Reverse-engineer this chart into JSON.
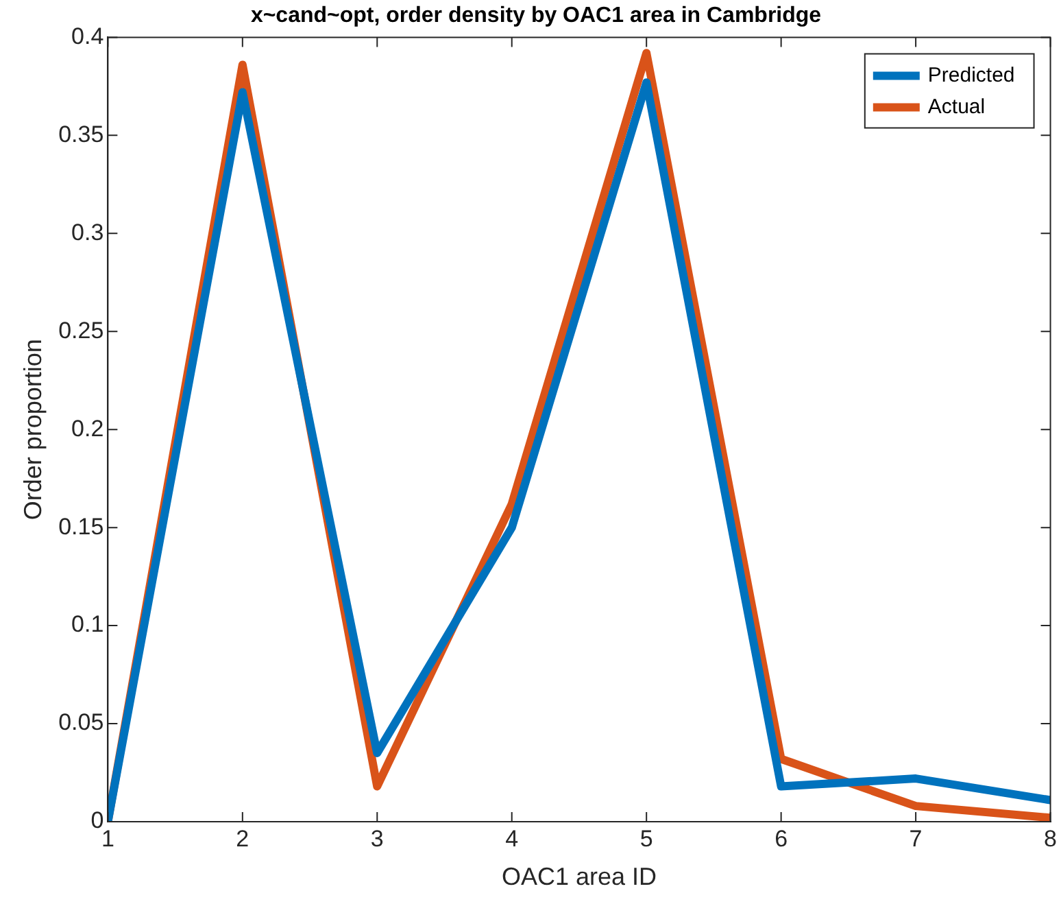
{
  "chart_data": {
    "type": "line",
    "title": "x~cand~opt, order density by OAC1 area in Cambridge",
    "xlabel": "OAC1 area ID",
    "ylabel": "Order proportion",
    "x": [
      1,
      2,
      3,
      4,
      5,
      6,
      7,
      8
    ],
    "series": [
      {
        "name": "Predicted",
        "color": "#0072bd",
        "values": [
          0,
          0.372,
          0.035,
          0.15,
          0.377,
          0.018,
          0.022,
          0.011
        ]
      },
      {
        "name": "Actual",
        "color": "#d95319",
        "values": [
          0,
          0.386,
          0.018,
          0.162,
          0.392,
          0.032,
          0.008,
          0.002
        ]
      }
    ],
    "xlim": [
      1,
      8
    ],
    "xticks": [
      1,
      2,
      3,
      4,
      5,
      6,
      7,
      8
    ],
    "ylim": [
      0,
      0.4
    ],
    "yticks": [
      0,
      0.05,
      0.1,
      0.15,
      0.2,
      0.25,
      0.3,
      0.35,
      0.4
    ],
    "grid": false,
    "legend": "top right",
    "marker": "none",
    "line_style": "solid"
  }
}
